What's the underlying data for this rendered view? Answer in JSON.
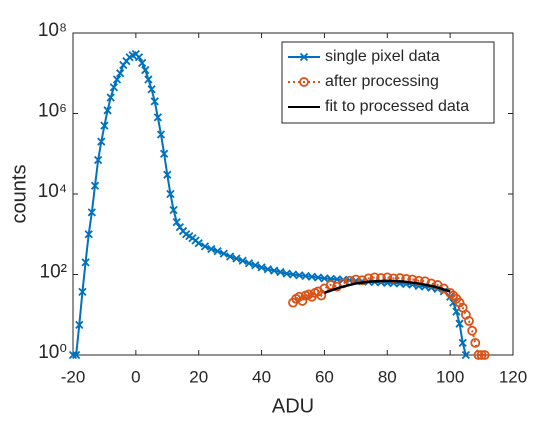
{
  "chart_data": {
    "type": "line",
    "xlabel": "ADU",
    "ylabel": "counts",
    "xlim": [
      -20,
      120
    ],
    "xticks": [
      -20,
      0,
      20,
      40,
      60,
      80,
      100,
      120
    ],
    "ylim": [
      1,
      100000000
    ],
    "log_y": true,
    "yticks": [
      {
        "value": 1,
        "label": "10⁰"
      },
      {
        "value": 100,
        "label": "10²"
      },
      {
        "value": 10000,
        "label": "10⁴"
      },
      {
        "value": 1000000,
        "label": "10⁶"
      },
      {
        "value": 100000000,
        "label": "10⁸"
      }
    ],
    "legend": "top-right",
    "series": [
      {
        "name": "single pixel data",
        "color": "#0072BD",
        "marker": "x",
        "line": "solid",
        "x": [
          -20,
          -19,
          -18,
          -17,
          -16,
          -15,
          -14,
          -13,
          -12,
          -11,
          -10,
          -9,
          -8,
          -7,
          -6,
          -5,
          -4,
          -3,
          -2,
          -1,
          0,
          1,
          2,
          3,
          4,
          5,
          6,
          7,
          8,
          9,
          10,
          11,
          12,
          13,
          14,
          15,
          16,
          17,
          18,
          19,
          20,
          22,
          24,
          26,
          28,
          30,
          32,
          34,
          36,
          38,
          40,
          42,
          44,
          46,
          48,
          50,
          52,
          54,
          56,
          58,
          60,
          62,
          64,
          66,
          68,
          70,
          72,
          74,
          76,
          78,
          80,
          82,
          84,
          86,
          88,
          90,
          92,
          94,
          96,
          98,
          100,
          101,
          102,
          103,
          104,
          105
        ],
        "values": [
          1,
          1,
          5.6,
          37,
          200,
          1000,
          3500,
          16000,
          70000,
          200000,
          500000,
          1200000,
          2500000,
          4500000,
          7000000,
          10000000,
          16000000,
          20000000,
          25000000,
          28000000,
          30000000,
          25000000,
          18000000,
          12000000,
          7000000,
          4000000,
          2000000,
          800000,
          300000,
          100000,
          30000,
          10000,
          4000,
          2000,
          1500,
          1200,
          1000,
          900,
          800,
          700,
          600,
          500,
          430,
          380,
          330,
          280,
          250,
          220,
          190,
          170,
          150,
          135,
          125,
          115,
          105,
          100,
          96,
          92,
          88,
          84,
          80,
          78,
          76,
          74,
          72,
          70,
          68,
          66,
          65,
          64,
          62,
          61,
          60,
          58,
          56,
          52,
          50,
          47,
          44,
          38,
          28,
          20,
          12,
          6,
          2,
          1
        ]
      },
      {
        "name": "after processing",
        "color": "#D95319",
        "marker": "o",
        "line": "dotted",
        "x": [
          50,
          51,
          52,
          53,
          54,
          55,
          56,
          57,
          58,
          59,
          60,
          62,
          64,
          66,
          68,
          70,
          72,
          74,
          76,
          78,
          80,
          82,
          84,
          86,
          88,
          90,
          92,
          94,
          96,
          98,
          100,
          101,
          102,
          103,
          104,
          105,
          106,
          107,
          108,
          109,
          110,
          111
        ],
        "values": [
          20,
          25,
          28,
          22,
          30,
          32,
          28,
          35,
          38,
          30,
          45,
          55,
          50,
          60,
          70,
          75,
          72,
          80,
          85,
          82,
          85,
          80,
          82,
          78,
          75,
          70,
          68,
          60,
          55,
          45,
          35,
          30,
          25,
          20,
          15,
          10,
          7,
          4,
          2,
          1,
          1,
          1
        ]
      },
      {
        "name": "fit to processed data",
        "color": "#000000",
        "marker": "none",
        "line": "solid",
        "x": [
          60,
          65,
          70,
          75,
          80,
          85,
          90,
          95,
          100
        ],
        "values": [
          35,
          48,
          60,
          67,
          70,
          67,
          60,
          50,
          38
        ]
      }
    ]
  }
}
